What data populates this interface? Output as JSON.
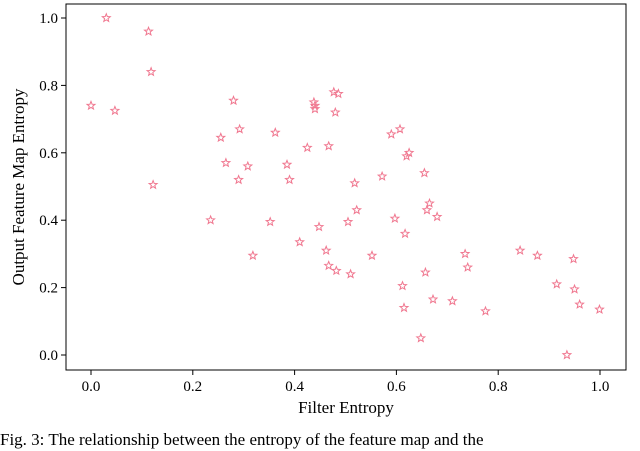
{
  "chart_data": {
    "type": "scatter",
    "title": "",
    "xlabel": "Filter Entropy",
    "ylabel": "Output Feature Map Entropy",
    "xlim": [
      -0.05,
      1.05
    ],
    "ylim": [
      -0.04,
      1.04
    ],
    "xticks": [
      "0.0",
      "0.2",
      "0.4",
      "0.6",
      "0.8",
      "1.0"
    ],
    "yticks": [
      "0.0",
      "0.2",
      "0.4",
      "0.6",
      "0.8",
      "1.0"
    ],
    "marker": "star",
    "color": "#f07890",
    "grid": false,
    "points": [
      [
        0.0,
        0.74
      ],
      [
        0.03,
        1.0
      ],
      [
        0.047,
        0.725
      ],
      [
        0.113,
        0.96
      ],
      [
        0.118,
        0.84
      ],
      [
        0.122,
        0.505
      ],
      [
        0.235,
        0.4
      ],
      [
        0.255,
        0.645
      ],
      [
        0.265,
        0.57
      ],
      [
        0.28,
        0.755
      ],
      [
        0.29,
        0.52
      ],
      [
        0.292,
        0.67
      ],
      [
        0.308,
        0.56
      ],
      [
        0.318,
        0.295
      ],
      [
        0.352,
        0.395
      ],
      [
        0.362,
        0.66
      ],
      [
        0.385,
        0.565
      ],
      [
        0.39,
        0.52
      ],
      [
        0.41,
        0.335
      ],
      [
        0.425,
        0.615
      ],
      [
        0.438,
        0.75
      ],
      [
        0.44,
        0.74
      ],
      [
        0.44,
        0.73
      ],
      [
        0.448,
        0.38
      ],
      [
        0.462,
        0.31
      ],
      [
        0.467,
        0.62
      ],
      [
        0.467,
        0.265
      ],
      [
        0.477,
        0.78
      ],
      [
        0.48,
        0.72
      ],
      [
        0.486,
        0.775
      ],
      [
        0.482,
        0.25
      ],
      [
        0.505,
        0.395
      ],
      [
        0.51,
        0.24
      ],
      [
        0.518,
        0.51
      ],
      [
        0.522,
        0.43
      ],
      [
        0.552,
        0.295
      ],
      [
        0.572,
        0.53
      ],
      [
        0.59,
        0.655
      ],
      [
        0.597,
        0.405
      ],
      [
        0.607,
        0.67
      ],
      [
        0.612,
        0.205
      ],
      [
        0.617,
        0.36
      ],
      [
        0.615,
        0.14
      ],
      [
        0.62,
        0.59
      ],
      [
        0.625,
        0.6
      ],
      [
        0.648,
        0.05
      ],
      [
        0.655,
        0.54
      ],
      [
        0.657,
        0.245
      ],
      [
        0.66,
        0.43
      ],
      [
        0.665,
        0.45
      ],
      [
        0.672,
        0.165
      ],
      [
        0.68,
        0.41
      ],
      [
        0.71,
        0.16
      ],
      [
        0.735,
        0.3
      ],
      [
        0.74,
        0.26
      ],
      [
        0.775,
        0.13
      ],
      [
        0.843,
        0.31
      ],
      [
        0.877,
        0.295
      ],
      [
        0.915,
        0.21
      ],
      [
        0.935,
        0.0
      ],
      [
        0.948,
        0.285
      ],
      [
        0.95,
        0.195
      ],
      [
        0.96,
        0.15
      ],
      [
        0.999,
        0.135
      ]
    ]
  },
  "caption": "Fig. 3: The relationship between the entropy of the feature map and the"
}
